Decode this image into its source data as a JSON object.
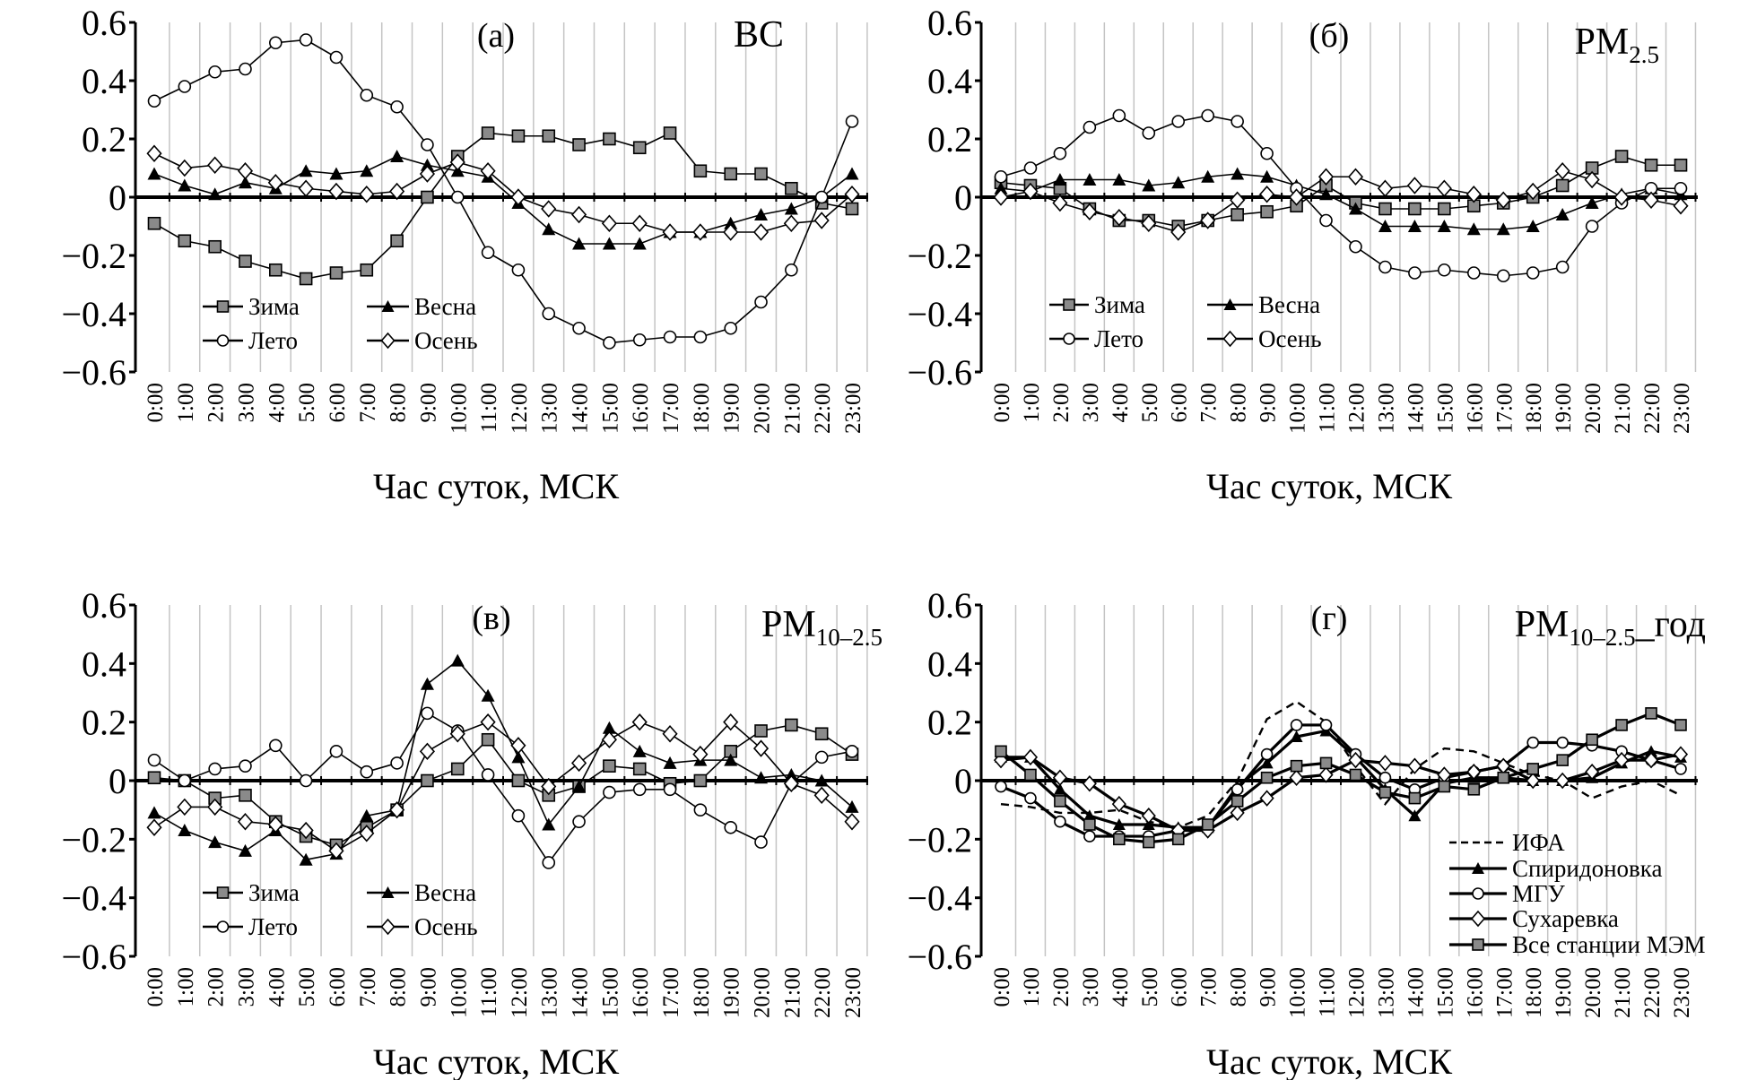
{
  "chart_data": [
    {
      "type": "line",
      "panel_label": "(а)",
      "title": "BC",
      "title_sub": "",
      "title_suffix": "",
      "xlabel": "Час суток, МСК",
      "ylabel": "",
      "ylim": [
        -0.6,
        0.6
      ],
      "yticks": [
        0.6,
        0.4,
        0.2,
        0,
        -0.2,
        -0.4,
        -0.6
      ],
      "ytick_labels": [
        "0.6",
        "0.4",
        "0.2",
        "0",
        "−0.2",
        "−0.4",
        "−0.6"
      ],
      "grid": "vertical",
      "legend_placement": "bottom-left",
      "categories": [
        "0:00",
        "1:00",
        "2:00",
        "3:00",
        "4:00",
        "5:00",
        "6:00",
        "7:00",
        "8:00",
        "9:00",
        "10:00",
        "11:00",
        "12:00",
        "13:00",
        "14:00",
        "15:00",
        "16:00",
        "17:00",
        "18:00",
        "19:00",
        "20:00",
        "21:00",
        "22:00",
        "23:00"
      ],
      "series": [
        {
          "name": "Зима",
          "marker": "square",
          "values": [
            -0.09,
            -0.15,
            -0.17,
            -0.22,
            -0.25,
            -0.28,
            -0.26,
            -0.25,
            -0.15,
            0.0,
            0.14,
            0.22,
            0.21,
            0.21,
            0.18,
            0.2,
            0.17,
            0.22,
            0.09,
            0.08,
            0.08,
            0.03,
            -0.02,
            -0.04
          ]
        },
        {
          "name": "Весна",
          "marker": "triangle",
          "values": [
            0.08,
            0.04,
            0.01,
            0.05,
            0.03,
            0.09,
            0.08,
            0.09,
            0.14,
            0.11,
            0.09,
            0.07,
            -0.02,
            -0.11,
            -0.16,
            -0.16,
            -0.16,
            -0.12,
            -0.12,
            -0.09,
            -0.06,
            -0.04,
            0.0,
            0.08
          ]
        },
        {
          "name": "Лето",
          "marker": "circle",
          "values": [
            0.33,
            0.38,
            0.43,
            0.44,
            0.53,
            0.54,
            0.48,
            0.35,
            0.31,
            0.18,
            0.0,
            -0.19,
            -0.25,
            -0.4,
            -0.45,
            -0.5,
            -0.49,
            -0.48,
            -0.48,
            -0.45,
            -0.36,
            -0.25,
            0.0,
            0.26
          ]
        },
        {
          "name": "Осень",
          "marker": "diamond",
          "values": [
            0.15,
            0.1,
            0.11,
            0.09,
            0.05,
            0.03,
            0.02,
            0.01,
            0.02,
            0.08,
            0.12,
            0.09,
            0.0,
            -0.04,
            -0.06,
            -0.09,
            -0.09,
            -0.12,
            -0.12,
            -0.12,
            -0.12,
            -0.09,
            -0.08,
            0.01
          ]
        }
      ]
    },
    {
      "type": "line",
      "panel_label": "(б)",
      "title": "PM",
      "title_sub": "2.5",
      "title_suffix": "",
      "xlabel": "Час суток, МСК",
      "ylabel": "",
      "ylim": [
        -0.6,
        0.6
      ],
      "yticks": [
        0.6,
        0.4,
        0.2,
        0,
        -0.2,
        -0.4,
        -0.6
      ],
      "ytick_labels": [
        "0.6",
        "0.4",
        "0.2",
        "0",
        "−0.2",
        "−0.4",
        "−0.6"
      ],
      "grid": "vertical",
      "legend_placement": "bottom-left",
      "categories": [
        "0:00",
        "1:00",
        "2:00",
        "3:00",
        "4:00",
        "5:00",
        "6:00",
        "7:00",
        "8:00",
        "9:00",
        "10:00",
        "11:00",
        "12:00",
        "13:00",
        "14:00",
        "15:00",
        "16:00",
        "17:00",
        "18:00",
        "19:00",
        "20:00",
        "21:00",
        "22:00",
        "23:00"
      ],
      "series": [
        {
          "name": "Зима",
          "marker": "square",
          "values": [
            0.05,
            0.04,
            0.03,
            -0.04,
            -0.08,
            -0.08,
            -0.1,
            -0.08,
            -0.06,
            -0.05,
            -0.03,
            0.04,
            -0.02,
            -0.04,
            -0.04,
            -0.04,
            -0.03,
            -0.02,
            0.0,
            0.04,
            0.1,
            0.14,
            0.11,
            0.11
          ]
        },
        {
          "name": "Весна",
          "marker": "triangle",
          "values": [
            0.03,
            0.02,
            0.06,
            0.06,
            0.06,
            0.04,
            0.05,
            0.07,
            0.08,
            0.07,
            0.04,
            0.01,
            -0.04,
            -0.1,
            -0.1,
            -0.1,
            -0.11,
            -0.11,
            -0.1,
            -0.06,
            -0.02,
            0.01,
            0.03,
            0.01
          ]
        },
        {
          "name": "Лето",
          "marker": "circle",
          "values": [
            0.07,
            0.1,
            0.15,
            0.24,
            0.28,
            0.22,
            0.26,
            0.28,
            0.26,
            0.15,
            0.03,
            -0.08,
            -0.17,
            -0.24,
            -0.26,
            -0.25,
            -0.26,
            -0.27,
            -0.26,
            -0.24,
            -0.1,
            -0.02,
            0.03,
            0.03
          ]
        },
        {
          "name": "Осень",
          "marker": "diamond",
          "values": [
            0.0,
            0.02,
            -0.02,
            -0.05,
            -0.07,
            -0.09,
            -0.12,
            -0.08,
            -0.01,
            0.01,
            0.0,
            0.07,
            0.07,
            0.03,
            0.04,
            0.03,
            0.01,
            -0.01,
            0.02,
            0.09,
            0.06,
            0.0,
            -0.01,
            -0.03
          ]
        }
      ]
    },
    {
      "type": "line",
      "panel_label": "(в)",
      "title": "PM",
      "title_sub": "10–2.5",
      "title_suffix": "",
      "xlabel": "Час суток, МСК",
      "ylabel": "",
      "ylim": [
        -0.6,
        0.6
      ],
      "yticks": [
        0.6,
        0.4,
        0.2,
        0,
        -0.2,
        -0.4,
        -0.6
      ],
      "ytick_labels": [
        "0.6",
        "0.4",
        "0.2",
        "0",
        "−0.2",
        "−0.4",
        "−0.6"
      ],
      "grid": "vertical",
      "legend_placement": "bottom-left",
      "categories": [
        "0:00",
        "1:00",
        "2:00",
        "3:00",
        "4:00",
        "5:00",
        "6:00",
        "7:00",
        "8:00",
        "9:00",
        "10:00",
        "11:00",
        "12:00",
        "13:00",
        "14:00",
        "15:00",
        "16:00",
        "17:00",
        "18:00",
        "19:00",
        "20:00",
        "21:00",
        "22:00",
        "23:00"
      ],
      "series": [
        {
          "name": "Зима",
          "marker": "square",
          "values": [
            0.01,
            0.0,
            -0.06,
            -0.05,
            -0.14,
            -0.19,
            -0.22,
            -0.16,
            -0.1,
            0.0,
            0.04,
            0.14,
            0.0,
            -0.05,
            -0.02,
            0.05,
            0.04,
            -0.01,
            0.0,
            0.1,
            0.17,
            0.19,
            0.16,
            0.09
          ]
        },
        {
          "name": "Весна",
          "marker": "triangle",
          "values": [
            -0.11,
            -0.17,
            -0.21,
            -0.24,
            -0.17,
            -0.27,
            -0.25,
            -0.12,
            -0.1,
            0.33,
            0.41,
            0.29,
            0.08,
            -0.15,
            -0.02,
            0.18,
            0.1,
            0.06,
            0.07,
            0.07,
            0.01,
            0.02,
            0.0,
            -0.09
          ]
        },
        {
          "name": "Лето",
          "marker": "circle",
          "values": [
            0.07,
            0.0,
            0.04,
            0.05,
            0.12,
            0.0,
            0.1,
            0.03,
            0.06,
            0.23,
            0.17,
            0.02,
            -0.12,
            -0.28,
            -0.14,
            -0.04,
            -0.03,
            -0.03,
            -0.1,
            -0.16,
            -0.21,
            -0.01,
            0.08,
            0.1
          ]
        },
        {
          "name": "Осень",
          "marker": "diamond",
          "values": [
            -0.16,
            -0.09,
            -0.09,
            -0.14,
            -0.15,
            -0.17,
            -0.24,
            -0.18,
            -0.1,
            0.1,
            0.16,
            0.2,
            0.12,
            -0.02,
            0.06,
            0.14,
            0.2,
            0.16,
            0.09,
            0.2,
            0.11,
            -0.01,
            -0.05,
            -0.14
          ]
        }
      ]
    },
    {
      "type": "line",
      "panel_label": "(г)",
      "title": "PM",
      "title_sub": "10–2.5",
      "title_suffix": "_год",
      "xlabel": "Час суток, МСК",
      "ylabel": "",
      "ylim": [
        -0.6,
        0.6
      ],
      "yticks": [
        0.6,
        0.4,
        0.2,
        0,
        -0.2,
        -0.4,
        -0.6
      ],
      "ytick_labels": [
        "0.6",
        "0.4",
        "0.2",
        "0",
        "−0.2",
        "−0.4",
        "−0.6"
      ],
      "grid": "vertical",
      "legend_placement": "bottom-right",
      "categories": [
        "0:00",
        "1:00",
        "2:00",
        "3:00",
        "4:00",
        "5:00",
        "6:00",
        "7:00",
        "8:00",
        "9:00",
        "10:00",
        "11:00",
        "12:00",
        "13:00",
        "14:00",
        "15:00",
        "16:00",
        "17:00",
        "18:00",
        "19:00",
        "20:00",
        "21:00",
        "22:00",
        "23:00"
      ],
      "series": [
        {
          "name": "ИФА",
          "marker": "none",
          "dashed": true,
          "values": [
            -0.08,
            -0.09,
            -0.11,
            -0.11,
            -0.1,
            -0.14,
            -0.16,
            -0.12,
            0.0,
            0.21,
            0.27,
            0.2,
            0.05,
            -0.08,
            0.04,
            0.11,
            0.1,
            0.06,
            0.02,
            0.0,
            -0.06,
            -0.02,
            0.0,
            -0.05
          ]
        },
        {
          "name": "Спиридоновка",
          "marker": "triangle",
          "values": [
            0.08,
            0.08,
            -0.03,
            -0.12,
            -0.15,
            -0.15,
            -0.16,
            -0.16,
            -0.02,
            0.06,
            0.15,
            0.17,
            0.08,
            -0.03,
            -0.12,
            -0.01,
            0.01,
            0.01,
            0.0,
            0.0,
            0.01,
            0.06,
            0.1,
            0.08
          ]
        },
        {
          "name": "МГУ",
          "marker": "circle",
          "values": [
            -0.02,
            -0.06,
            -0.14,
            -0.19,
            -0.19,
            -0.19,
            -0.17,
            -0.16,
            -0.03,
            0.09,
            0.19,
            0.19,
            0.09,
            0.01,
            -0.03,
            0.01,
            0.03,
            0.05,
            0.13,
            0.13,
            0.12,
            0.1,
            0.07,
            0.04
          ]
        },
        {
          "name": "Сухаревка",
          "marker": "diamond",
          "values": [
            0.07,
            0.08,
            0.01,
            -0.01,
            -0.08,
            -0.12,
            -0.17,
            -0.17,
            -0.11,
            -0.06,
            0.01,
            0.02,
            0.07,
            0.06,
            0.05,
            0.02,
            0.03,
            0.05,
            0.0,
            0.0,
            0.03,
            0.07,
            0.07,
            0.09
          ]
        },
        {
          "name": "Все станции МЭМ",
          "marker": "square",
          "values": [
            0.1,
            0.02,
            -0.07,
            -0.15,
            -0.2,
            -0.21,
            -0.2,
            -0.15,
            -0.07,
            0.01,
            0.05,
            0.06,
            0.02,
            -0.04,
            -0.06,
            -0.02,
            -0.03,
            0.01,
            0.04,
            0.07,
            0.14,
            0.19,
            0.23,
            0.19
          ]
        }
      ]
    }
  ]
}
